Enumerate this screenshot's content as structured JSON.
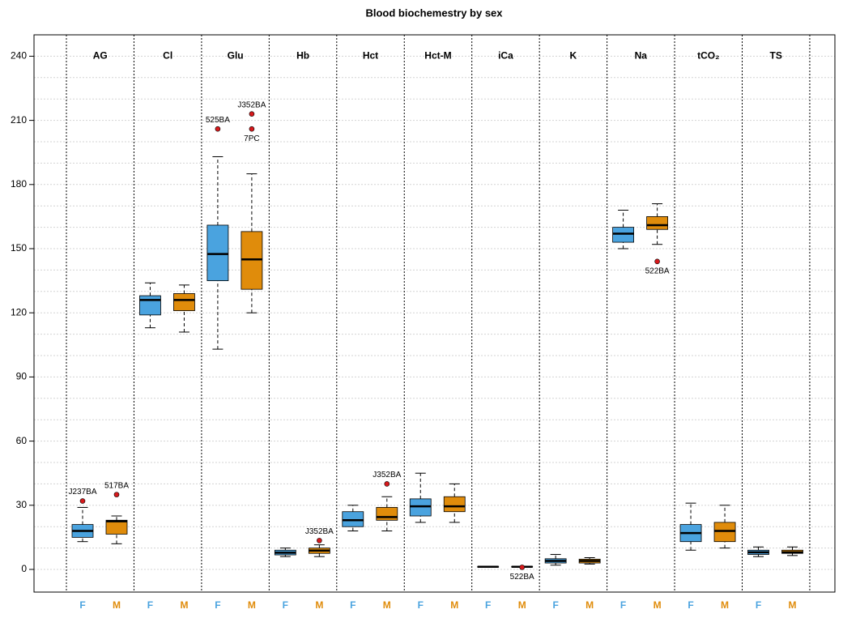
{
  "chart_data": {
    "type": "box",
    "title": "Blood biochemestry by sex",
    "groups": [
      "AG",
      "Cl",
      "Glu",
      "Hb",
      "Hct",
      "Hct-M",
      "iCa",
      "K",
      "Na",
      "tCO₂",
      "TS"
    ],
    "ylim": [
      -10.6,
      250
    ],
    "yticks": [
      0,
      30,
      60,
      90,
      120,
      150,
      180,
      210,
      240
    ],
    "grid": true,
    "ygrid": [
      0,
      10,
      20,
      30,
      40,
      50,
      60,
      70,
      80,
      90,
      100,
      110,
      120,
      130,
      140,
      150,
      160,
      170,
      180,
      190,
      200,
      210,
      220,
      230,
      240
    ],
    "outlier_color": "#d7191c",
    "series": [
      {
        "name": "F",
        "color": "#4aa3df",
        "boxes": [
          {
            "whislo": 13,
            "q1": 15,
            "med": 18,
            "q3": 21,
            "whishi": 29,
            "outliers": [
              {
                "value": 32,
                "label": "J237BA"
              }
            ]
          },
          {
            "whislo": 113,
            "q1": 119,
            "med": 126,
            "q3": 128,
            "whishi": 134,
            "outliers": []
          },
          {
            "whislo": 103,
            "q1": 135,
            "med": 147.5,
            "q3": 161,
            "whishi": 193,
            "outliers": [
              {
                "value": 206,
                "label": "525BA"
              }
            ]
          },
          {
            "whislo": 6,
            "q1": 6.8,
            "med": 7.8,
            "q3": 9,
            "whishi": 10,
            "outliers": []
          },
          {
            "whislo": 18,
            "q1": 20,
            "med": 23,
            "q3": 27,
            "whishi": 30,
            "outliers": []
          },
          {
            "whislo": 22,
            "q1": 25,
            "med": 29.5,
            "q3": 33,
            "whishi": 45,
            "outliers": []
          },
          {
            "whislo": 1.1,
            "q1": 1.2,
            "med": 1.25,
            "q3": 1.3,
            "whishi": 1.4,
            "outliers": []
          },
          {
            "whislo": 2,
            "q1": 3,
            "med": 4,
            "q3": 5,
            "whishi": 7,
            "outliers": []
          },
          {
            "whislo": 150,
            "q1": 153,
            "med": 157,
            "q3": 160,
            "whishi": 168,
            "outliers": []
          },
          {
            "whislo": 9,
            "q1": 13,
            "med": 17,
            "q3": 21,
            "whishi": 31,
            "outliers": []
          },
          {
            "whislo": 6,
            "q1": 7,
            "med": 8,
            "q3": 9,
            "whishi": 10.5,
            "outliers": []
          }
        ]
      },
      {
        "name": "M",
        "color": "#e08c0b",
        "boxes": [
          {
            "whislo": 12,
            "q1": 16.5,
            "med": 22.5,
            "q3": 23,
            "whishi": 25,
            "outliers": [
              {
                "value": 35,
                "label": "517BA"
              }
            ]
          },
          {
            "whislo": 111,
            "q1": 121,
            "med": 126,
            "q3": 129,
            "whishi": 133,
            "outliers": []
          },
          {
            "whislo": 120,
            "q1": 131,
            "med": 145,
            "q3": 158,
            "whishi": 185,
            "outliers": [
              {
                "value": 213,
                "label": "J352BA"
              },
              {
                "value": 206,
                "label": "7PC"
              }
            ]
          },
          {
            "whislo": 6,
            "q1": 7.5,
            "med": 8.8,
            "q3": 10,
            "whishi": 11.5,
            "outliers": [
              {
                "value": 13.5,
                "label": "J352BA"
              }
            ]
          },
          {
            "whislo": 18,
            "q1": 23,
            "med": 24.5,
            "q3": 29,
            "whishi": 34,
            "outliers": [
              {
                "value": 40,
                "label": "J352BA"
              }
            ]
          },
          {
            "whislo": 22,
            "q1": 27,
            "med": 29.5,
            "q3": 34,
            "whishi": 40,
            "outliers": []
          },
          {
            "whislo": 1.1,
            "q1": 1.2,
            "med": 1.25,
            "q3": 1.35,
            "whishi": 1.4,
            "outliers": [
              {
                "value": 1.0,
                "label": "522BA"
              }
            ]
          },
          {
            "whislo": 2.5,
            "q1": 3,
            "med": 4,
            "q3": 4.8,
            "whishi": 5.5,
            "outliers": []
          },
          {
            "whislo": 152,
            "q1": 159,
            "med": 161,
            "q3": 165,
            "whishi": 171,
            "outliers": [
              {
                "value": 144,
                "label": "522BA"
              }
            ]
          },
          {
            "whislo": 10,
            "q1": 13,
            "med": 18,
            "q3": 22,
            "whishi": 30,
            "outliers": []
          },
          {
            "whislo": 6.5,
            "q1": 7.5,
            "med": 8,
            "q3": 9,
            "whishi": 10.5,
            "outliers": []
          }
        ]
      }
    ]
  }
}
